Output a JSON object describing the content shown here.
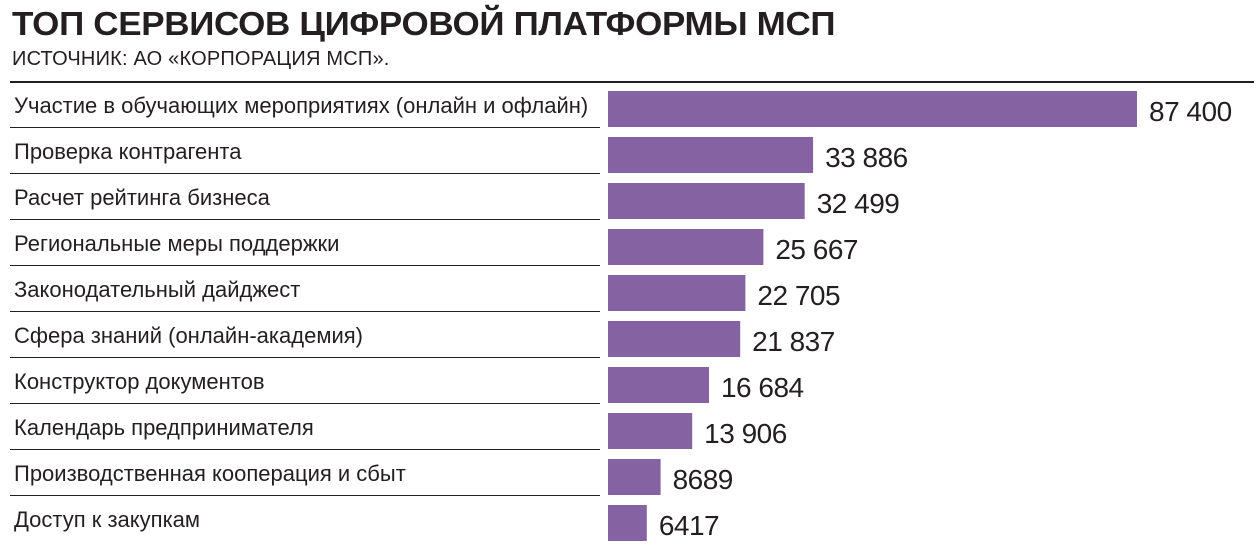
{
  "header": {
    "title": "ТОП СЕРВИСОВ ЦИФРОВОЙ ПЛАТФОРМЫ МСП",
    "subtitle": "ИСТОЧНИК: АО «КОРПОРАЦИЯ МСП»."
  },
  "chart_data": {
    "type": "bar",
    "orientation": "horizontal",
    "title": "ТОП СЕРВИСОВ ЦИФРОВОЙ ПЛАТФОРМЫ МСП",
    "subtitle": "ИСТОЧНИК: АО «КОРПОРАЦИЯ МСП».",
    "xlabel": "",
    "ylabel": "",
    "grid": false,
    "bar_color": "#8563a3",
    "categories": [
      "Участие в обучающих мероприятиях (онлайн и офлайн)",
      "Проверка контрагента",
      "Расчет рейтинга бизнеса",
      "Региональные меры поддержки",
      "Законодательный дайджест",
      "Сфера знаний (онлайн-академия)",
      "Конструктор документов",
      "Календарь предпринимателя",
      "Производственная кооперация и сбыт",
      "Доступ к закупкам"
    ],
    "values": [
      87400,
      33886,
      32499,
      25667,
      22705,
      21837,
      16684,
      13906,
      8689,
      6417
    ],
    "value_labels": [
      "87 400",
      "33 886",
      "32 499",
      "25 667",
      "22 705",
      "21 837",
      "16 684",
      "13 906",
      "8689",
      "6417"
    ]
  }
}
